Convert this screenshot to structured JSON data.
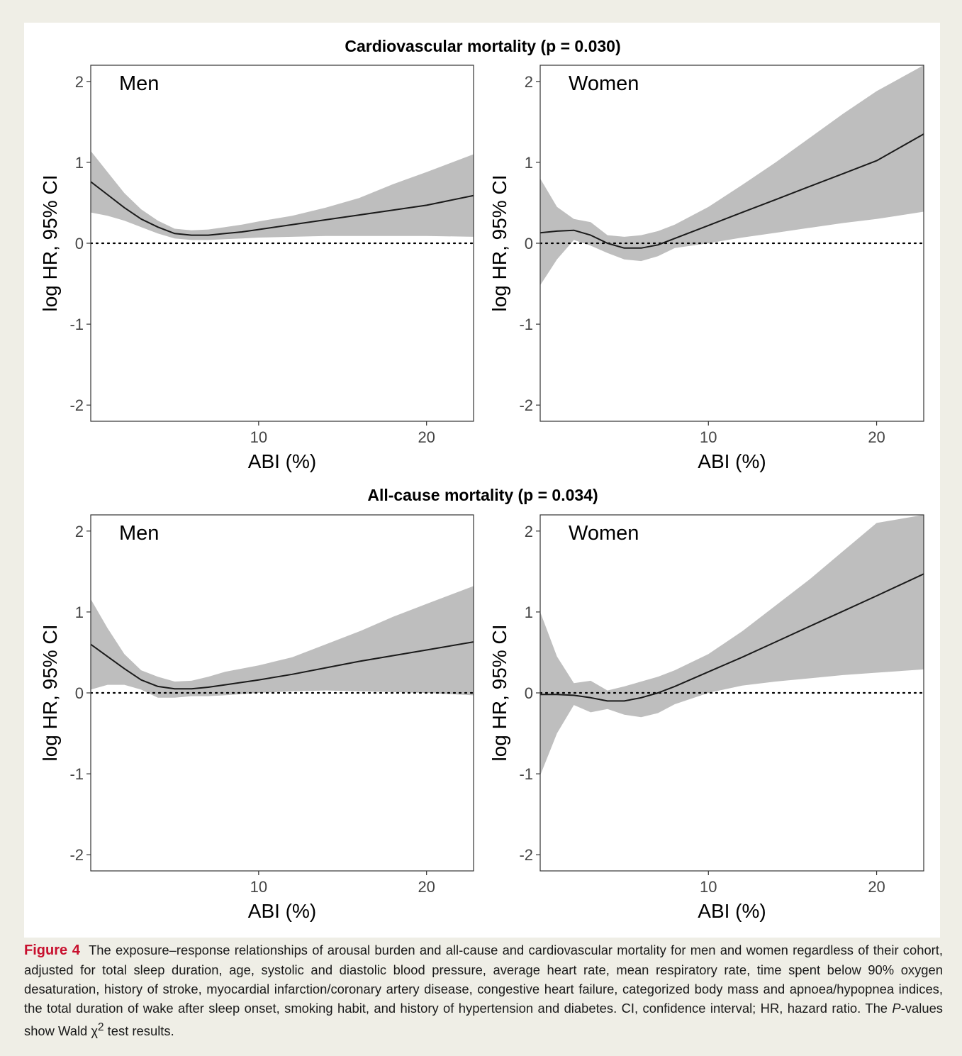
{
  "caption": {
    "label": "Figure 4",
    "text": "The exposure–response relationships of arousal burden and all-cause and cardiovascular mortality for men and women regardless of their cohort, adjusted for total sleep duration, age, systolic and diastolic blood pressure, average heart rate, mean respiratory rate, time spent below 90% oxygen desaturation, history of stroke, myocardial infarction/coronary artery disease, congestive heart failure, categorized body mass and apnoea/hypopnea indices, the total duration of wake after sleep onset, smoking habit, and history of hypertension and diabetes. CI, confidence interval; HR, hazard ratio. The ",
    "p_italic": "P",
    "text_2": "-values show Wald ",
    "chi": "χ",
    "chi_sup": "2",
    "text_3": " test results."
  },
  "row_titles": [
    "Cardiovascular mortality (p = 0.030)",
    "All-cause mortality (p = 0.034)"
  ],
  "colors": {
    "ci_band": "#bebebe",
    "line": "#1a1a1a",
    "reference": "#000000",
    "axis_text": "#444444"
  },
  "chart_data": [
    {
      "type": "line",
      "row_title": "Cardiovascular mortality (p = 0.030)",
      "panel_label": "Men",
      "xlabel": "ABI (%)",
      "ylabel": "log HR, 95% CI",
      "xlim": [
        0,
        22.8
      ],
      "ylim": [
        -2.2,
        2.2
      ],
      "xticks": [
        10,
        20
      ],
      "yticks": [
        -2,
        -1,
        0,
        1,
        2
      ],
      "reference_line": 0,
      "x": [
        0,
        1,
        2,
        3,
        4,
        5,
        6,
        7,
        8,
        9,
        10,
        12,
        14,
        16,
        18,
        20,
        22.8
      ],
      "y": [
        0.76,
        0.6,
        0.44,
        0.3,
        0.2,
        0.12,
        0.1,
        0.1,
        0.12,
        0.14,
        0.17,
        0.23,
        0.29,
        0.35,
        0.41,
        0.47,
        0.59
      ],
      "lower": [
        0.38,
        0.34,
        0.28,
        0.2,
        0.12,
        0.06,
        0.04,
        0.04,
        0.05,
        0.06,
        0.07,
        0.08,
        0.09,
        0.09,
        0.09,
        0.09,
        0.08
      ],
      "upper": [
        1.14,
        0.88,
        0.62,
        0.42,
        0.28,
        0.18,
        0.16,
        0.17,
        0.2,
        0.23,
        0.27,
        0.34,
        0.44,
        0.56,
        0.73,
        0.88,
        1.1
      ]
    },
    {
      "type": "line",
      "row_title": "Cardiovascular mortality (p = 0.030)",
      "panel_label": "Women",
      "xlabel": "ABI (%)",
      "ylabel": "log HR, 95% CI",
      "xlim": [
        0,
        22.8
      ],
      "ylim": [
        -2.2,
        2.2
      ],
      "xticks": [
        10,
        20
      ],
      "yticks": [
        -2,
        -1,
        0,
        1,
        2
      ],
      "reference_line": 0,
      "x": [
        0,
        1,
        2,
        3,
        4,
        5,
        6,
        7,
        8,
        10,
        12,
        14,
        16,
        18,
        20,
        22.8
      ],
      "y": [
        0.13,
        0.15,
        0.16,
        0.1,
        0.0,
        -0.06,
        -0.06,
        -0.02,
        0.06,
        0.22,
        0.38,
        0.54,
        0.7,
        0.86,
        1.02,
        1.35
      ],
      "lower": [
        -0.52,
        -0.2,
        0.04,
        -0.03,
        -0.12,
        -0.2,
        -0.22,
        -0.16,
        -0.06,
        0.0,
        0.07,
        0.13,
        0.19,
        0.25,
        0.3,
        0.39
      ],
      "upper": [
        0.8,
        0.45,
        0.3,
        0.26,
        0.1,
        0.08,
        0.1,
        0.15,
        0.23,
        0.45,
        0.72,
        1.0,
        1.3,
        1.6,
        1.88,
        2.2
      ]
    },
    {
      "type": "line",
      "row_title": "All-cause mortality (p = 0.034)",
      "panel_label": "Men",
      "xlabel": "ABI (%)",
      "ylabel": "log HR, 95% CI",
      "xlim": [
        0,
        22.8
      ],
      "ylim": [
        -2.2,
        2.2
      ],
      "xticks": [
        10,
        20
      ],
      "yticks": [
        -2,
        -1,
        0,
        1,
        2
      ],
      "reference_line": 0,
      "x": [
        0,
        1,
        2,
        3,
        4,
        5,
        6,
        7,
        8,
        10,
        12,
        14,
        16,
        18,
        20,
        22.8
      ],
      "y": [
        0.6,
        0.45,
        0.3,
        0.16,
        0.08,
        0.05,
        0.05,
        0.07,
        0.1,
        0.16,
        0.23,
        0.31,
        0.39,
        0.46,
        0.53,
        0.63
      ],
      "lower": [
        0.04,
        0.1,
        0.1,
        0.04,
        -0.06,
        -0.06,
        -0.04,
        -0.04,
        -0.03,
        0.0,
        0.02,
        0.03,
        0.02,
        0.01,
        0.0,
        -0.03
      ],
      "upper": [
        1.16,
        0.8,
        0.48,
        0.28,
        0.2,
        0.14,
        0.15,
        0.2,
        0.26,
        0.34,
        0.44,
        0.6,
        0.76,
        0.94,
        1.1,
        1.32
      ]
    },
    {
      "type": "line",
      "row_title": "All-cause mortality (p = 0.034)",
      "panel_label": "Women",
      "xlabel": "ABI (%)",
      "ylabel": "log HR, 95% CI",
      "xlim": [
        0,
        22.8
      ],
      "ylim": [
        -2.2,
        2.2
      ],
      "xticks": [
        10,
        20
      ],
      "yticks": [
        -2,
        -1,
        0,
        1,
        2
      ],
      "reference_line": 0,
      "x": [
        0,
        1,
        2,
        3,
        4,
        5,
        6,
        7,
        8,
        10,
        12,
        14,
        16,
        18,
        20,
        22.8
      ],
      "y": [
        -0.02,
        -0.02,
        -0.03,
        -0.06,
        -0.1,
        -0.1,
        -0.06,
        0.0,
        0.08,
        0.26,
        0.44,
        0.63,
        0.82,
        1.01,
        1.2,
        1.47
      ],
      "lower": [
        -1.02,
        -0.5,
        -0.15,
        -0.24,
        -0.2,
        -0.27,
        -0.3,
        -0.25,
        -0.14,
        0.0,
        0.09,
        0.14,
        0.18,
        0.22,
        0.25,
        0.29
      ],
      "upper": [
        1.0,
        0.45,
        0.12,
        0.15,
        0.03,
        0.08,
        0.14,
        0.2,
        0.28,
        0.48,
        0.76,
        1.08,
        1.4,
        1.75,
        2.1,
        2.2
      ]
    }
  ]
}
